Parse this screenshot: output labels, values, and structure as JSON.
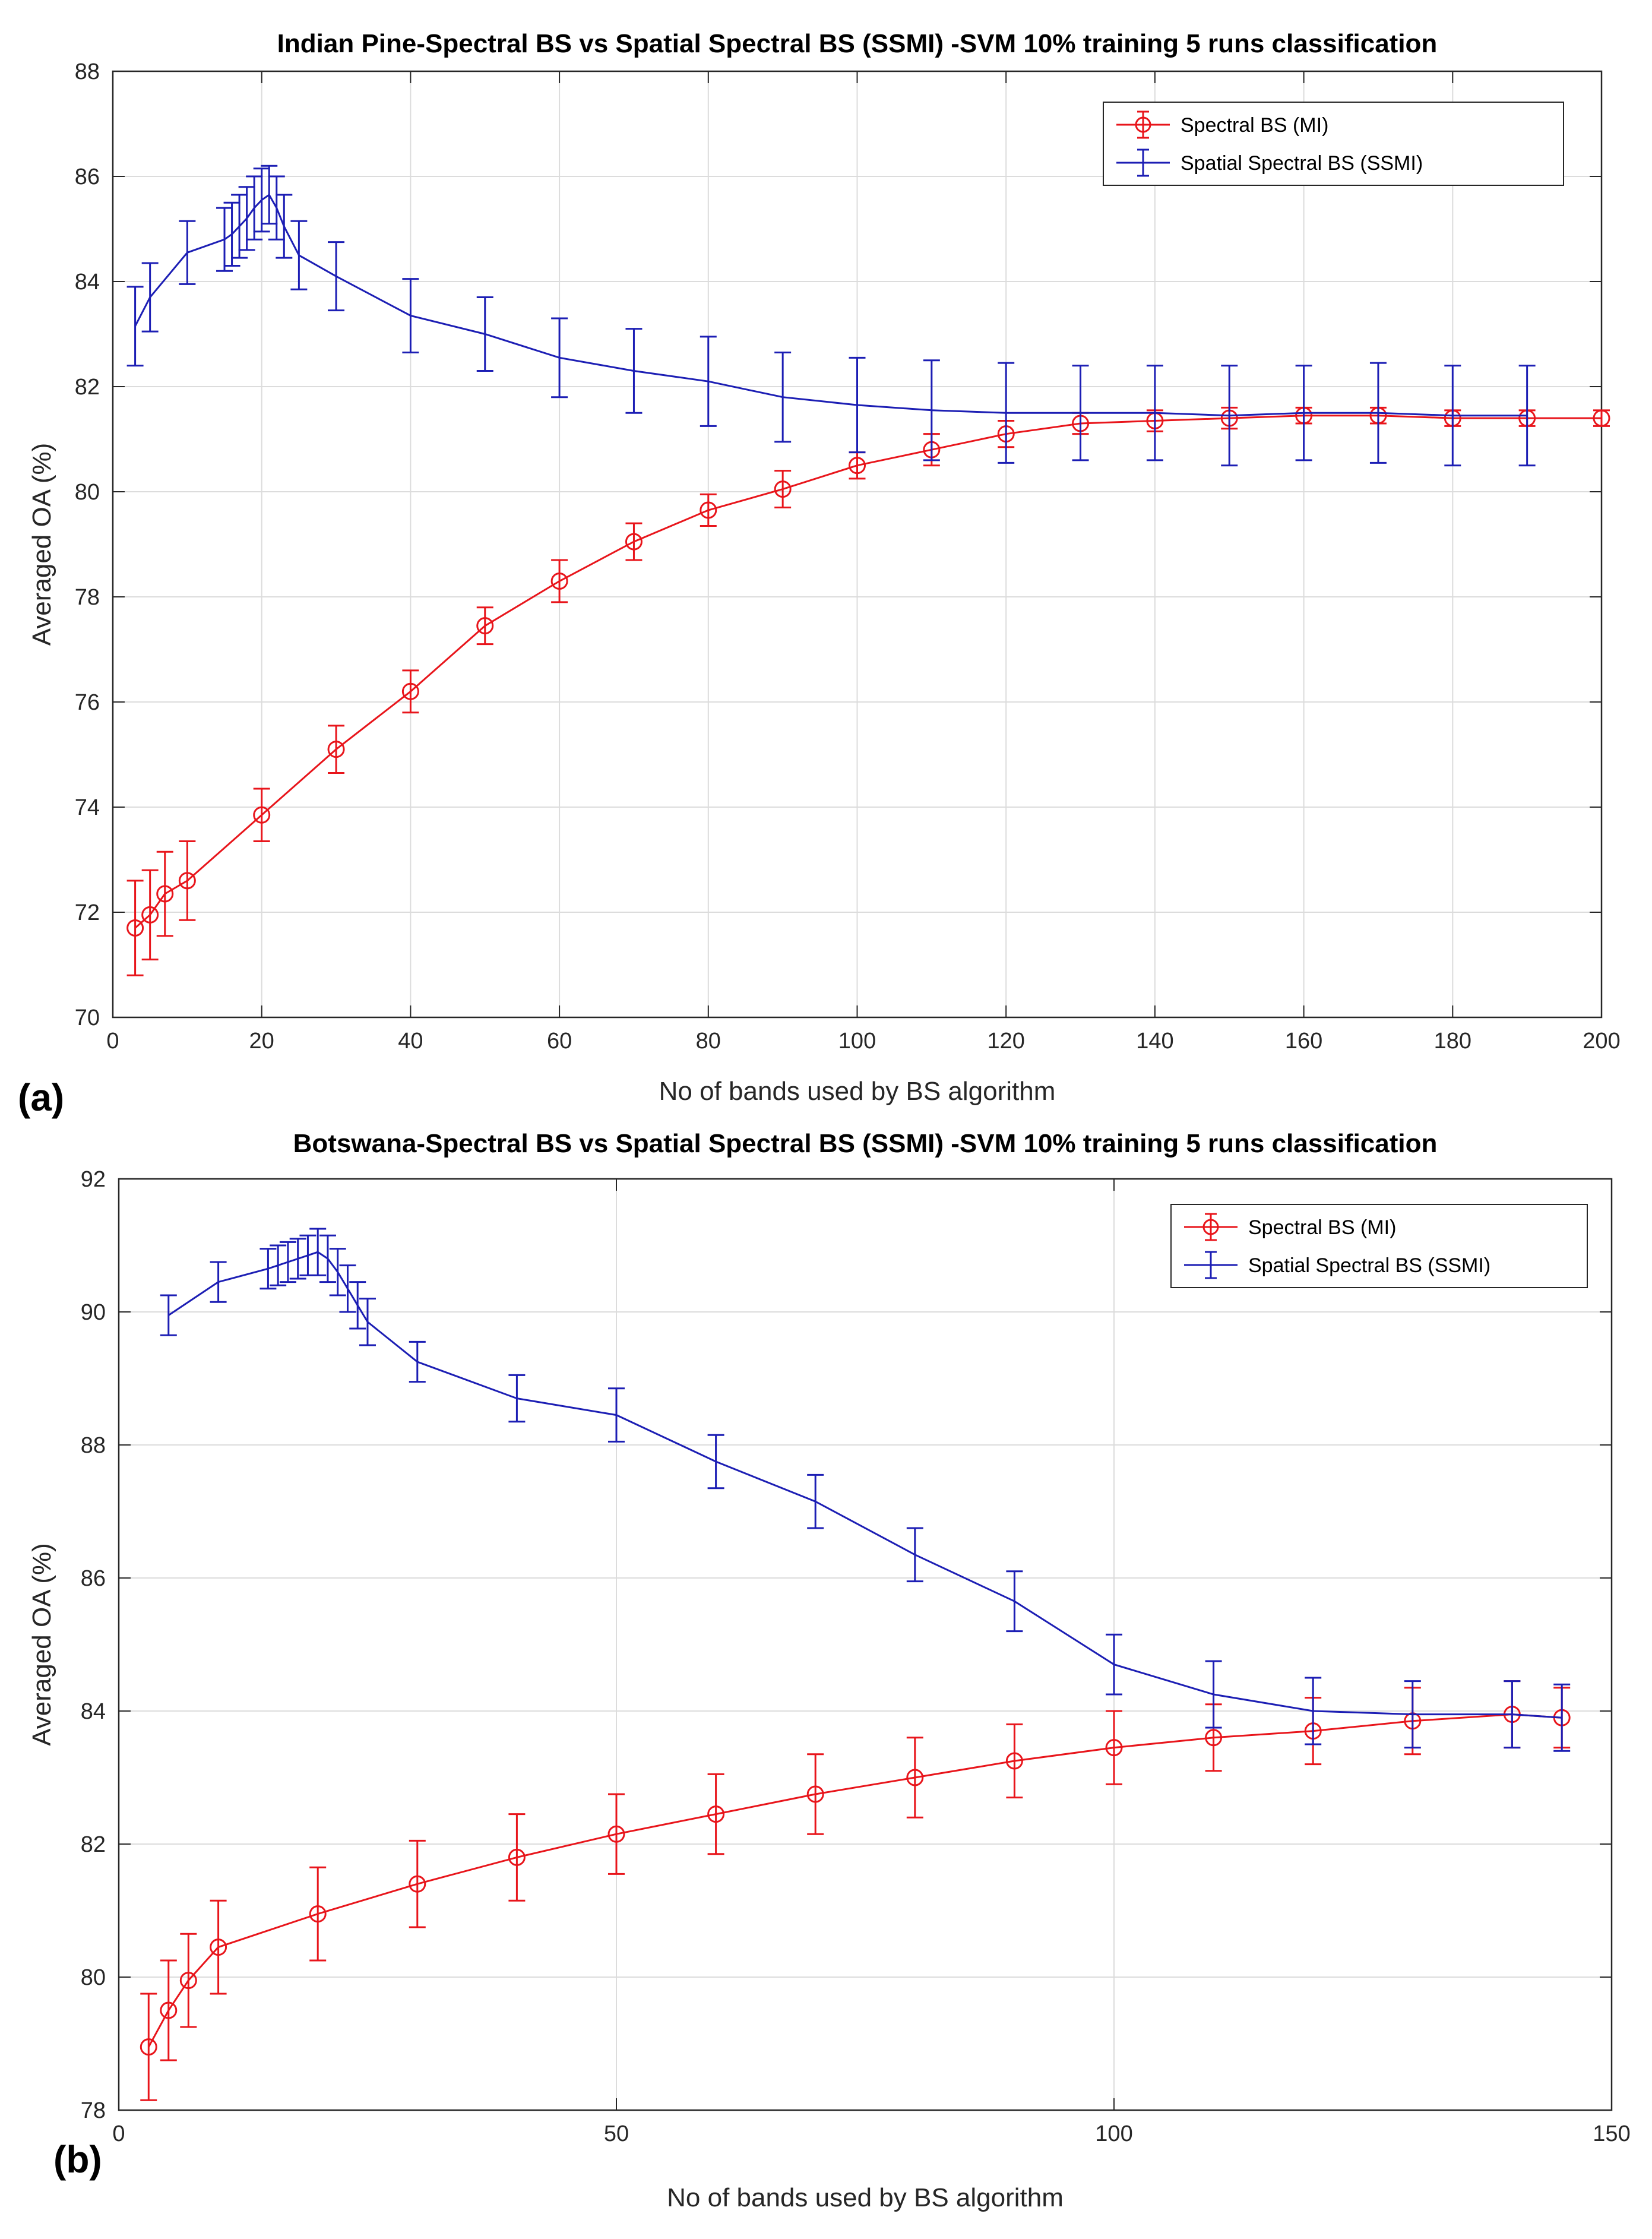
{
  "chart_data": [
    {
      "type": "line",
      "panel_label": "(a)",
      "title": "Indian Pine-Spectral BS vs Spatial Spectral BS (SSMI) -SVM 10% training 5 runs classification",
      "xlabel": "No of bands used by BS algorithm",
      "ylabel": "Averaged OA (%)",
      "xlim": [
        0,
        200
      ],
      "ylim": [
        70,
        88
      ],
      "xticks": [
        0,
        20,
        40,
        60,
        80,
        100,
        120,
        140,
        160,
        180,
        200
      ],
      "yticks": [
        70,
        72,
        74,
        76,
        78,
        80,
        82,
        84,
        86,
        88
      ],
      "grid": true,
      "legend_position": "top-right",
      "series": [
        {
          "name": "Spectral BS (MI)",
          "color": "#e8151b",
          "marker": "circle",
          "x": [
            3,
            5,
            7,
            10,
            20,
            30,
            40,
            50,
            60,
            70,
            80,
            90,
            100,
            110,
            120,
            130,
            140,
            150,
            160,
            170,
            180,
            190,
            200
          ],
          "y": [
            71.7,
            71.95,
            72.35,
            72.6,
            73.85,
            75.1,
            76.2,
            77.45,
            78.3,
            79.05,
            79.65,
            80.05,
            80.5,
            80.8,
            81.1,
            81.3,
            81.35,
            81.4,
            81.45,
            81.45,
            81.4,
            81.4,
            81.4
          ],
          "err": [
            0.9,
            0.85,
            0.8,
            0.75,
            0.5,
            0.45,
            0.4,
            0.35,
            0.4,
            0.35,
            0.3,
            0.35,
            0.25,
            0.3,
            0.25,
            0.2,
            0.2,
            0.2,
            0.15,
            0.15,
            0.15,
            0.15,
            0.15
          ]
        },
        {
          "name": "Spatial Spectral BS (SSMI)",
          "color": "#1c1eb4",
          "marker": "none",
          "x": [
            3,
            5,
            10,
            15,
            16,
            17,
            18,
            19,
            20,
            21,
            22,
            23,
            25,
            30,
            40,
            50,
            60,
            70,
            80,
            90,
            100,
            110,
            120,
            130,
            140,
            150,
            160,
            170,
            180,
            190
          ],
          "y": [
            83.15,
            83.7,
            84.55,
            84.8,
            84.9,
            85.05,
            85.2,
            85.4,
            85.55,
            85.65,
            85.4,
            85.05,
            84.5,
            84.1,
            83.35,
            83.0,
            82.55,
            82.3,
            82.1,
            81.8,
            81.65,
            81.55,
            81.5,
            81.5,
            81.5,
            81.45,
            81.5,
            81.5,
            81.45,
            81.45
          ],
          "err": [
            0.75,
            0.65,
            0.6,
            0.6,
            0.6,
            0.6,
            0.6,
            0.6,
            0.6,
            0.55,
            0.6,
            0.6,
            0.65,
            0.65,
            0.7,
            0.7,
            0.75,
            0.8,
            0.85,
            0.85,
            0.9,
            0.95,
            0.95,
            0.9,
            0.9,
            0.95,
            0.9,
            0.95,
            0.95,
            0.95
          ]
        }
      ]
    },
    {
      "type": "line",
      "panel_label": "(b)",
      "title": "Botswana-Spectral BS vs Spatial Spectral BS (SSMI) -SVM 10% training 5 runs classification",
      "xlabel": "No of bands used by BS algorithm",
      "ylabel": "Averaged OA (%)",
      "xlim": [
        0,
        150
      ],
      "ylim": [
        78,
        92
      ],
      "xticks": [
        0,
        50,
        100,
        150
      ],
      "yticks": [
        78,
        80,
        82,
        84,
        86,
        88,
        90,
        92
      ],
      "grid": true,
      "legend_position": "top-right",
      "series": [
        {
          "name": "Spectral BS (MI)",
          "color": "#e8151b",
          "marker": "circle",
          "x": [
            3,
            5,
            7,
            10,
            20,
            30,
            40,
            50,
            60,
            70,
            80,
            90,
            100,
            110,
            120,
            130,
            140,
            145
          ],
          "y": [
            78.95,
            79.5,
            79.95,
            80.45,
            80.95,
            81.4,
            81.8,
            82.15,
            82.45,
            82.75,
            83.0,
            83.25,
            83.45,
            83.6,
            83.7,
            83.85,
            83.95,
            83.9
          ],
          "err": [
            0.8,
            0.75,
            0.7,
            0.7,
            0.7,
            0.65,
            0.65,
            0.6,
            0.6,
            0.6,
            0.6,
            0.55,
            0.55,
            0.5,
            0.5,
            0.5,
            0.5,
            0.45
          ]
        },
        {
          "name": "Spatial Spectral BS (SSMI)",
          "color": "#1c1eb4",
          "marker": "none",
          "x": [
            5,
            10,
            15,
            16,
            17,
            18,
            19,
            20,
            21,
            22,
            23,
            24,
            25,
            30,
            40,
            50,
            60,
            70,
            80,
            90,
            100,
            110,
            120,
            130,
            140,
            145
          ],
          "y": [
            89.95,
            90.45,
            90.65,
            90.7,
            90.75,
            90.8,
            90.85,
            90.9,
            90.8,
            90.6,
            90.35,
            90.1,
            89.85,
            89.25,
            88.7,
            88.45,
            87.75,
            87.15,
            86.35,
            85.65,
            84.7,
            84.25,
            84.0,
            83.95,
            83.95,
            83.9
          ],
          "err": [
            0.3,
            0.3,
            0.3,
            0.3,
            0.3,
            0.3,
            0.3,
            0.35,
            0.35,
            0.35,
            0.35,
            0.35,
            0.35,
            0.3,
            0.35,
            0.4,
            0.4,
            0.4,
            0.4,
            0.45,
            0.45,
            0.5,
            0.5,
            0.5,
            0.5,
            0.5
          ]
        }
      ]
    }
  ]
}
